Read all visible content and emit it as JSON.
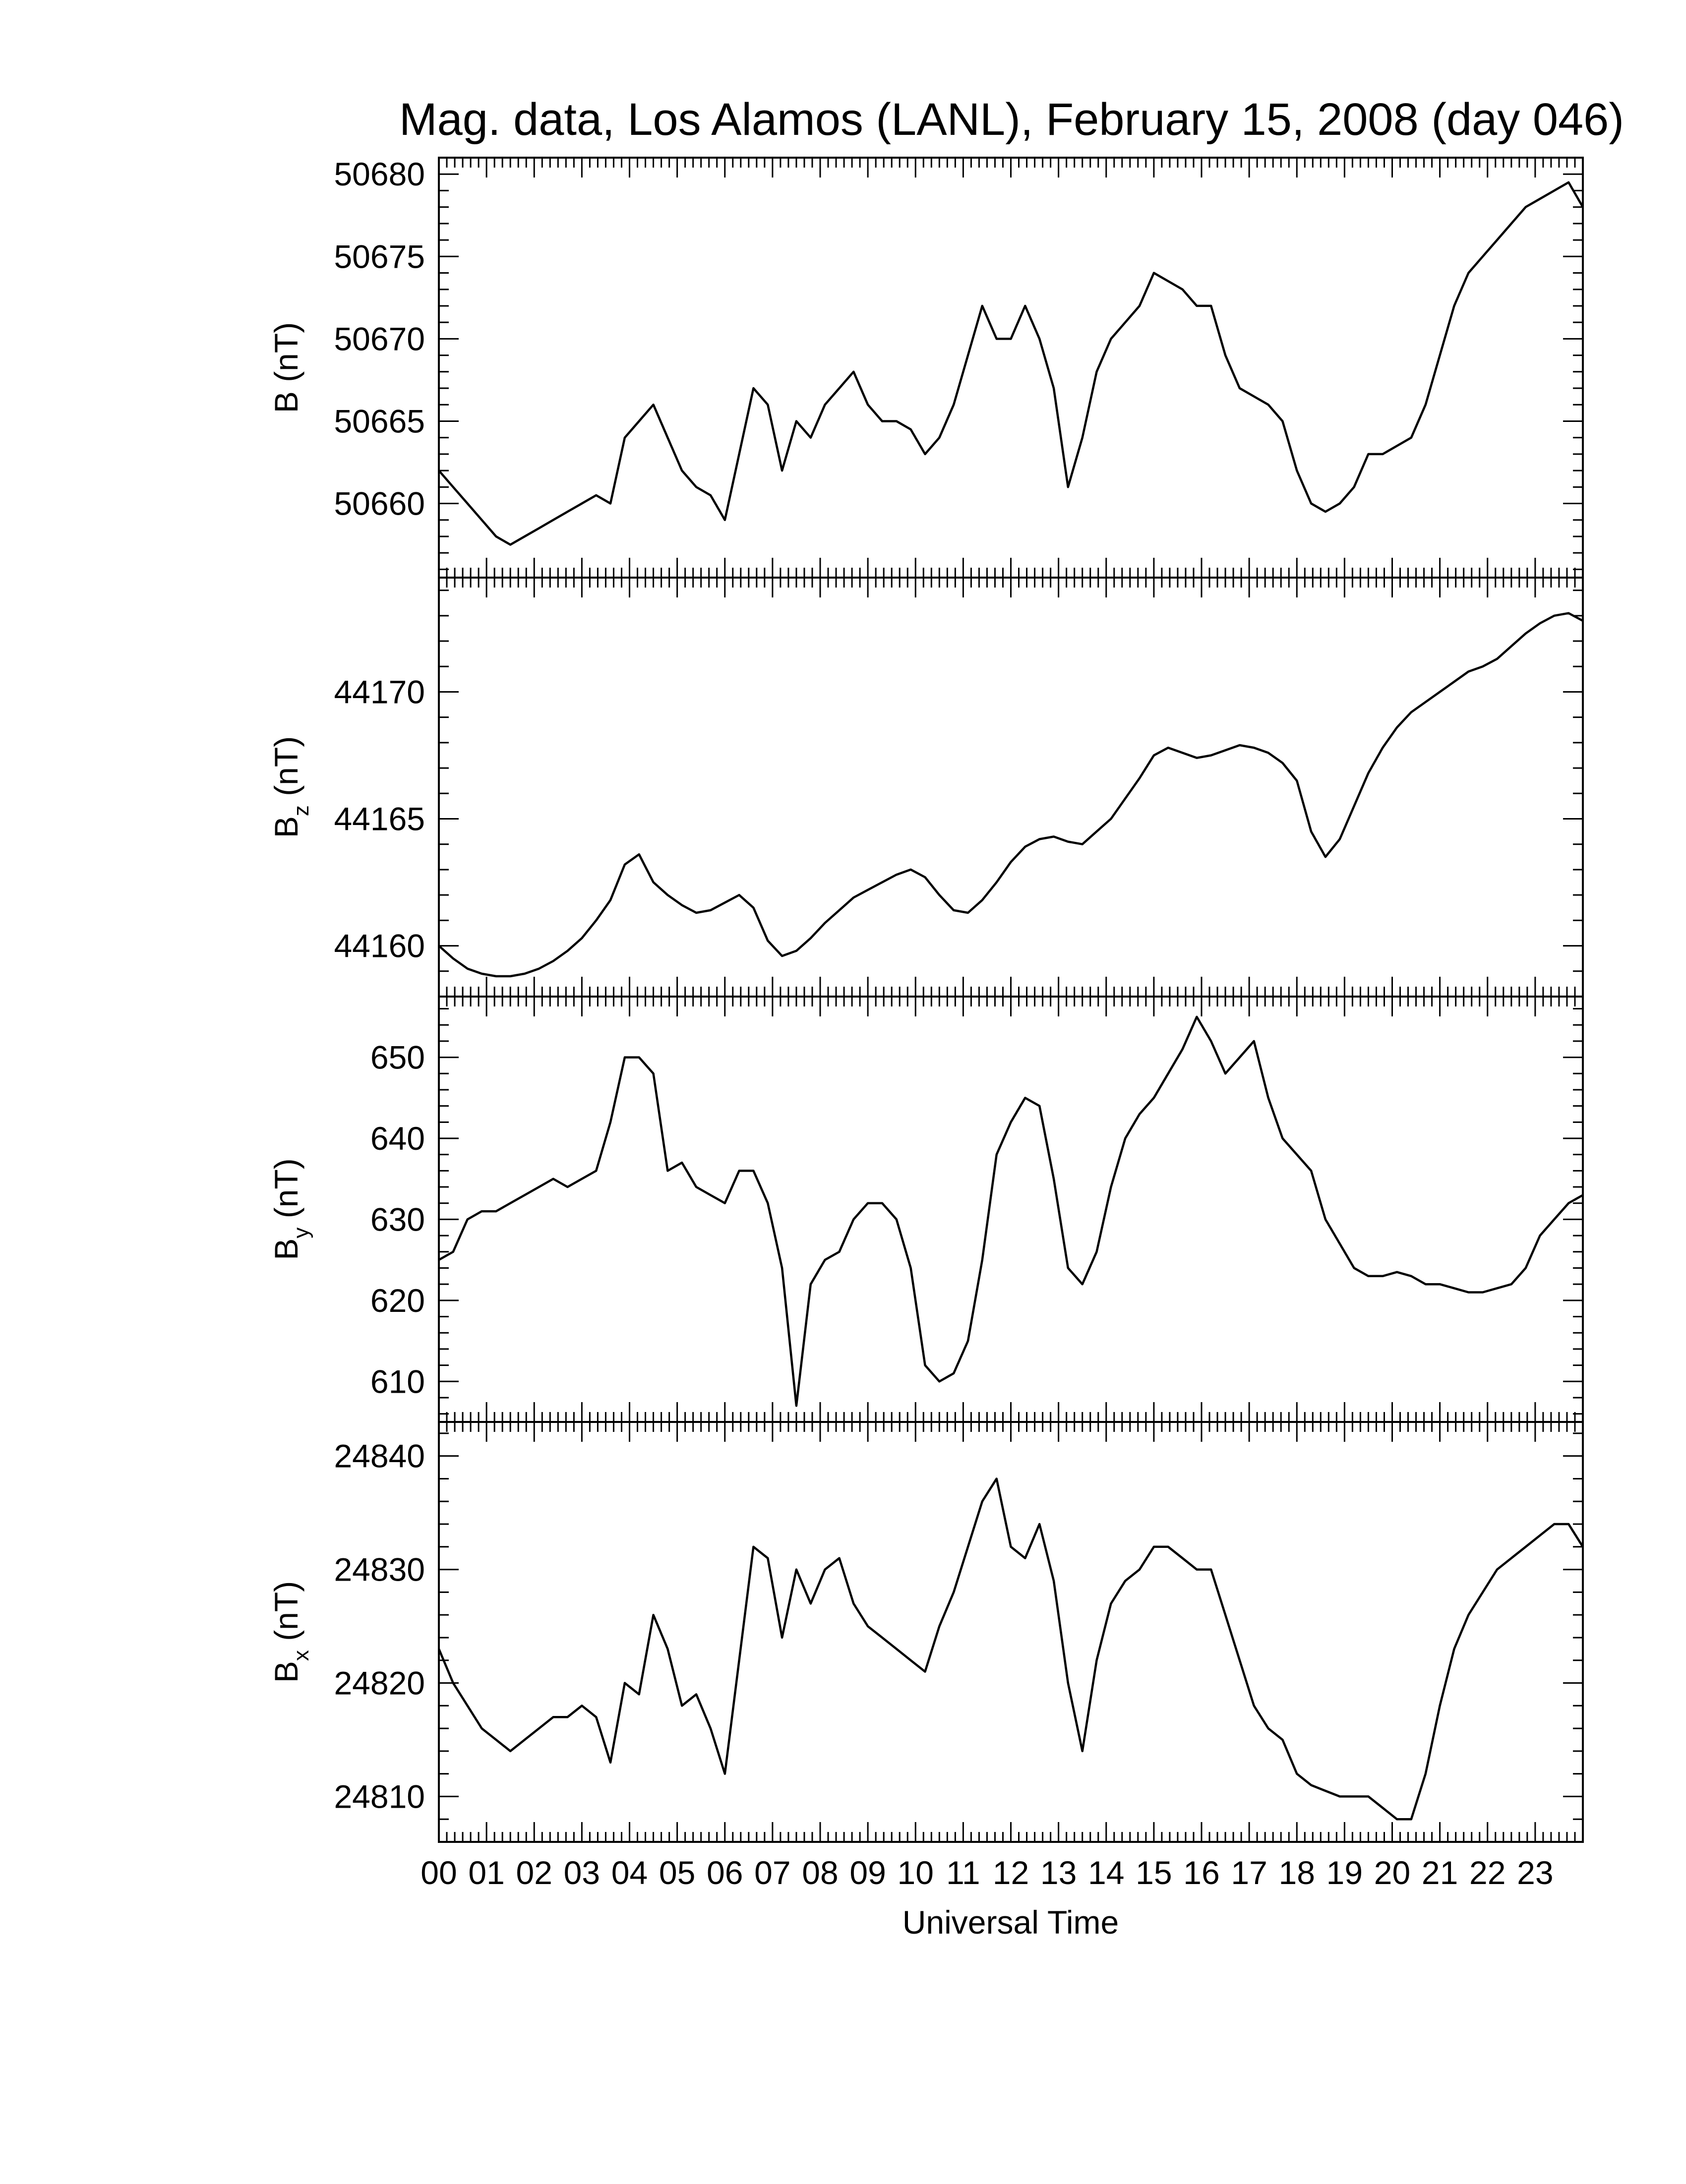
{
  "chart_data": {
    "type": "line",
    "title": "Mag. data, Los Alamos (LANL), February 15, 2008 (day 046)",
    "xlabel": "Universal Time",
    "x_range": [
      0,
      24
    ],
    "x_tick_labels": [
      "00",
      "01",
      "02",
      "03",
      "04",
      "05",
      "06",
      "07",
      "08",
      "09",
      "10",
      "11",
      "12",
      "13",
      "14",
      "15",
      "16",
      "17",
      "18",
      "19",
      "20",
      "21",
      "22",
      "23"
    ],
    "panels": [
      {
        "id": "b-total",
        "ylabel_main": "B",
        "ylabel_sub": "",
        "ylabel_unit": "(nT)",
        "ylim": [
          50655.5,
          50681
        ],
        "y_ticks": [
          50660,
          50665,
          50670,
          50675,
          50680
        ],
        "x": [
          0,
          0.3,
          0.6,
          0.9,
          1.2,
          1.5,
          1.8,
          2.1,
          2.4,
          2.7,
          3.0,
          3.3,
          3.6,
          3.9,
          4.2,
          4.5,
          4.8,
          5.1,
          5.4,
          5.7,
          6.0,
          6.3,
          6.6,
          6.9,
          7.2,
          7.5,
          7.8,
          8.1,
          8.4,
          8.7,
          9.0,
          9.3,
          9.6,
          9.9,
          10.2,
          10.5,
          10.8,
          11.1,
          11.4,
          11.7,
          12.0,
          12.3,
          12.6,
          12.9,
          13.2,
          13.5,
          13.8,
          14.1,
          14.4,
          14.7,
          15.0,
          15.3,
          15.6,
          15.9,
          16.2,
          16.5,
          16.8,
          17.1,
          17.4,
          17.7,
          18.0,
          18.3,
          18.6,
          18.9,
          19.2,
          19.5,
          19.8,
          20.1,
          20.4,
          20.7,
          21.0,
          21.3,
          21.6,
          21.9,
          22.2,
          22.5,
          22.8,
          23.1,
          23.4,
          23.7,
          24.0
        ],
        "values": [
          50662,
          50661,
          50660,
          50659,
          50658,
          50657.5,
          50658,
          50658.5,
          50659,
          50659.5,
          50660,
          50660.5,
          50660,
          50664,
          50665,
          50666,
          50664,
          50662,
          50661,
          50660.5,
          50659,
          50663,
          50667,
          50666,
          50662,
          50665,
          50664,
          50666,
          50667,
          50668,
          50666,
          50665,
          50665,
          50664.5,
          50663,
          50664,
          50666,
          50669,
          50672,
          50670,
          50670,
          50672,
          50670,
          50667,
          50661,
          50664,
          50668,
          50670,
          50671,
          50672,
          50674,
          50673.5,
          50673,
          50672,
          50672,
          50669,
          50667,
          50666.5,
          50666,
          50665,
          50662,
          50660,
          50659.5,
          50660,
          50661,
          50663,
          50663,
          50663.5,
          50664,
          50666,
          50669,
          50672,
          50674,
          50675,
          50676,
          50677,
          50678,
          50678.5,
          50679,
          50679.5,
          50678
        ]
      },
      {
        "id": "bz",
        "ylabel_main": "B",
        "ylabel_sub": "z",
        "ylabel_unit": "(nT)",
        "ylim": [
          44158,
          44174.5
        ],
        "y_ticks": [
          44160,
          44165,
          44170
        ],
        "x": [
          0,
          0.3,
          0.6,
          0.9,
          1.2,
          1.5,
          1.8,
          2.1,
          2.4,
          2.7,
          3.0,
          3.3,
          3.6,
          3.9,
          4.2,
          4.5,
          4.8,
          5.1,
          5.4,
          5.7,
          6.0,
          6.3,
          6.6,
          6.9,
          7.2,
          7.5,
          7.8,
          8.1,
          8.4,
          8.7,
          9.0,
          9.3,
          9.6,
          9.9,
          10.2,
          10.5,
          10.8,
          11.1,
          11.4,
          11.7,
          12.0,
          12.3,
          12.6,
          12.9,
          13.2,
          13.5,
          13.8,
          14.1,
          14.4,
          14.7,
          15.0,
          15.3,
          15.6,
          15.9,
          16.2,
          16.5,
          16.8,
          17.1,
          17.4,
          17.7,
          18.0,
          18.3,
          18.6,
          18.9,
          19.2,
          19.5,
          19.8,
          20.1,
          20.4,
          20.7,
          21.0,
          21.3,
          21.6,
          21.9,
          22.2,
          22.5,
          22.8,
          23.1,
          23.4,
          23.7,
          24.0
        ],
        "values": [
          44160,
          44159.5,
          44159.1,
          44158.9,
          44158.8,
          44158.8,
          44158.9,
          44159.1,
          44159.4,
          44159.8,
          44160.3,
          44161,
          44161.8,
          44163.2,
          44163.6,
          44162.5,
          44162,
          44161.6,
          44161.3,
          44161.4,
          44161.7,
          44162,
          44161.5,
          44160.2,
          44159.6,
          44159.8,
          44160.3,
          44160.9,
          44161.4,
          44161.9,
          44162.2,
          44162.5,
          44162.8,
          44163,
          44162.7,
          44162,
          44161.4,
          44161.3,
          44161.8,
          44162.5,
          44163.3,
          44163.9,
          44164.2,
          44164.3,
          44164.1,
          44164,
          44164.5,
          44165,
          44165.8,
          44166.6,
          44167.5,
          44167.8,
          44167.6,
          44167.4,
          44167.5,
          44167.7,
          44167.9,
          44167.8,
          44167.6,
          44167.2,
          44166.5,
          44164.5,
          44163.5,
          44164.2,
          44165.5,
          44166.8,
          44167.8,
          44168.6,
          44169.2,
          44169.6,
          44170,
          44170.4,
          44170.8,
          44171,
          44171.3,
          44171.8,
          44172.3,
          44172.7,
          44173,
          44173.1,
          44172.8
        ]
      },
      {
        "id": "by",
        "ylabel_main": "B",
        "ylabel_sub": "y",
        "ylabel_unit": "(nT)",
        "ylim": [
          605,
          657.5
        ],
        "y_ticks": [
          610,
          620,
          630,
          640,
          650
        ],
        "x": [
          0,
          0.3,
          0.6,
          0.9,
          1.2,
          1.5,
          1.8,
          2.1,
          2.4,
          2.7,
          3.0,
          3.3,
          3.6,
          3.9,
          4.2,
          4.5,
          4.8,
          5.1,
          5.4,
          5.7,
          6.0,
          6.3,
          6.6,
          6.9,
          7.2,
          7.5,
          7.8,
          8.1,
          8.4,
          8.7,
          9.0,
          9.3,
          9.6,
          9.9,
          10.2,
          10.5,
          10.8,
          11.1,
          11.4,
          11.7,
          12.0,
          12.3,
          12.6,
          12.9,
          13.2,
          13.5,
          13.8,
          14.1,
          14.4,
          14.7,
          15.0,
          15.3,
          15.6,
          15.9,
          16.2,
          16.5,
          16.8,
          17.1,
          17.4,
          17.7,
          18.0,
          18.3,
          18.6,
          18.9,
          19.2,
          19.5,
          19.8,
          20.1,
          20.4,
          20.7,
          21.0,
          21.3,
          21.6,
          21.9,
          22.2,
          22.5,
          22.8,
          23.1,
          23.4,
          23.7,
          24.0
        ],
        "values": [
          625,
          626,
          630,
          631,
          631,
          632,
          633,
          634,
          635,
          634,
          635,
          636,
          642,
          650,
          650,
          648,
          636,
          637,
          634,
          633,
          632,
          636,
          636,
          632,
          624,
          607,
          622,
          625,
          626,
          630,
          632,
          632,
          630,
          624,
          612,
          610,
          611,
          615,
          625,
          638,
          642,
          645,
          644,
          635,
          624,
          622,
          626,
          634,
          640,
          643,
          645,
          648,
          651,
          655,
          652,
          648,
          650,
          652,
          645,
          640,
          638,
          636,
          630,
          627,
          624,
          623,
          623,
          623.5,
          623,
          622,
          622,
          621.5,
          621,
          621,
          621.5,
          622,
          624,
          628,
          630,
          632,
          633
        ]
      },
      {
        "id": "bx",
        "ylabel_main": "B",
        "ylabel_sub": "x",
        "ylabel_unit": "(nT)",
        "ylim": [
          24806,
          24843
        ],
        "y_ticks": [
          24810,
          24820,
          24830,
          24840
        ],
        "x": [
          0,
          0.3,
          0.6,
          0.9,
          1.2,
          1.5,
          1.8,
          2.1,
          2.4,
          2.7,
          3.0,
          3.3,
          3.6,
          3.9,
          4.2,
          4.5,
          4.8,
          5.1,
          5.4,
          5.7,
          6.0,
          6.3,
          6.6,
          6.9,
          7.2,
          7.5,
          7.8,
          8.1,
          8.4,
          8.7,
          9.0,
          9.3,
          9.6,
          9.9,
          10.2,
          10.5,
          10.8,
          11.1,
          11.4,
          11.7,
          12.0,
          12.3,
          12.6,
          12.9,
          13.2,
          13.5,
          13.8,
          14.1,
          14.4,
          14.7,
          15.0,
          15.3,
          15.6,
          15.9,
          16.2,
          16.5,
          16.8,
          17.1,
          17.4,
          17.7,
          18.0,
          18.3,
          18.6,
          18.9,
          19.2,
          19.5,
          19.8,
          20.1,
          20.4,
          20.7,
          21.0,
          21.3,
          21.6,
          21.9,
          22.2,
          22.5,
          22.8,
          23.1,
          23.4,
          23.7,
          24.0
        ],
        "values": [
          24823,
          24820,
          24818,
          24816,
          24815,
          24814,
          24815,
          24816,
          24817,
          24817,
          24818,
          24817,
          24813,
          24820,
          24819,
          24826,
          24823,
          24818,
          24819,
          24816,
          24812,
          24822,
          24832,
          24831,
          24824,
          24830,
          24827,
          24830,
          24831,
          24827,
          24825,
          24824,
          24823,
          24822,
          24821,
          24825,
          24828,
          24832,
          24836,
          24838,
          24832,
          24831,
          24834,
          24829,
          24820,
          24814,
          24822,
          24827,
          24829,
          24830,
          24832,
          24832,
          24831,
          24830,
          24830,
          24826,
          24822,
          24818,
          24816,
          24815,
          24812,
          24811,
          24810.5,
          24810,
          24810,
          24810,
          24809,
          24808,
          24808,
          24812,
          24818,
          24823,
          24826,
          24828,
          24830,
          24831,
          24832,
          24833,
          24834,
          24834,
          24832
        ]
      }
    ]
  }
}
